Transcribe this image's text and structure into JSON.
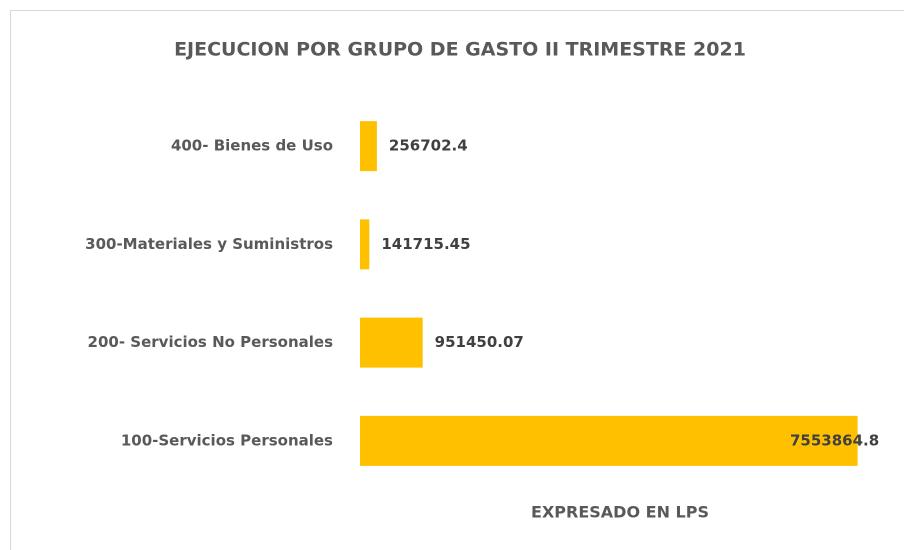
{
  "chart_data": {
    "type": "bar",
    "orientation": "horizontal",
    "title": "EJECUCION POR GRUPO DE GASTO II TRIMESTRE 2021",
    "x_label": "EXPRESADO EN LPS",
    "categories": [
      "400- Bienes de Uso",
      "300-Materiales y Suministros",
      "200- Servicios No Personales",
      "100-Servicios Personales"
    ],
    "values": [
      256702.4,
      141715.45,
      951450.07,
      7553864.8
    ],
    "color": "#ffc000",
    "xlim": [
      0,
      8000000
    ]
  }
}
